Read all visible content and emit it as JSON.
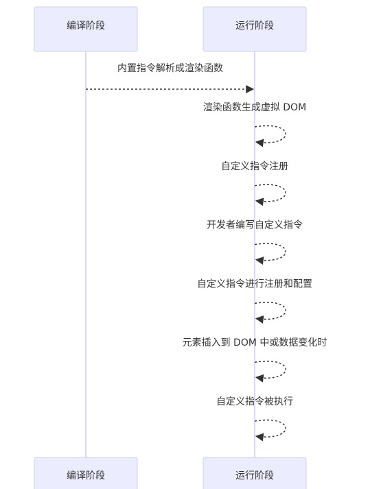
{
  "participants": [
    "编译阶段",
    "运行阶段"
  ],
  "messages": [
    "内置指令解析成渲染函数",
    "渲染函数生成虚拟 DOM",
    "自定义指令注册",
    "开发者编写自定义指令",
    "自定义指令进行注册和配置",
    "元素插入到 DOM 中或数据变化时",
    "自定义指令被执行"
  ]
}
